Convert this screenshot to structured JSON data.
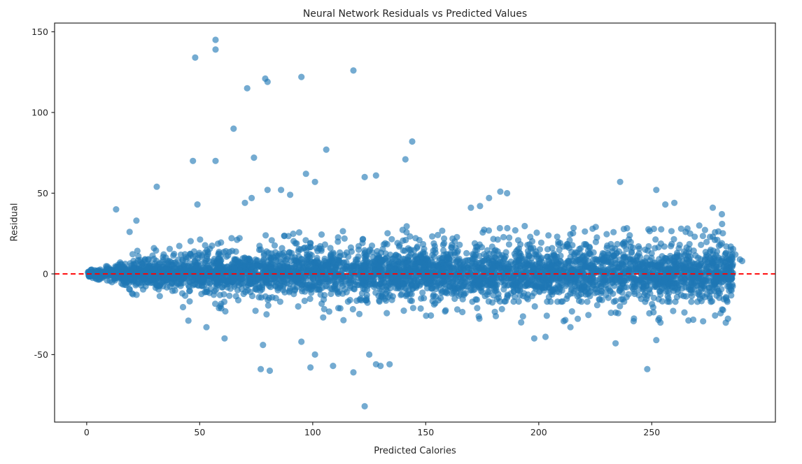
{
  "chart_data": {
    "type": "scatter",
    "title": "Neural Network Residuals vs Predicted Values",
    "xlabel": "Predicted Calories",
    "ylabel": "Residual",
    "xlim": [
      -14.2,
      304.7
    ],
    "ylim": [
      -91.8,
      155.4
    ],
    "x_ticks": [
      0,
      50,
      100,
      150,
      200,
      250
    ],
    "y_ticks": [
      -50,
      0,
      50,
      100,
      150
    ],
    "grid": false,
    "legend": null,
    "background": "#ffffff",
    "frame_color": "#262626",
    "marker": {
      "color": "#1f77b4",
      "alpha": 0.62,
      "radius": 4.6
    },
    "zero_line": {
      "y": 0,
      "color": "#ff0000",
      "style": "dashed",
      "width": 1.8,
      "dash": "7 4.5"
    },
    "series": [
      {
        "name": "residuals",
        "summary": "Funnel-shaped dense band of residuals: very tight near predicted=0, widening to roughly +/-16 by predicted=100 and staying about +/-18 through predicted=285, centered on the zero line, with sparse outliers up to +145 and down to -82",
        "band": {
          "seed": 42,
          "n_core": 4200,
          "n_fringe": 270,
          "x_min": 0.5,
          "x_max": 286,
          "width_base": 1.5,
          "width_amp": 13,
          "width_tau": 45,
          "sigma_div": 1.9,
          "clip_sigma": 2.35,
          "bias": 0.6,
          "fringe_x_min": 12,
          "fringe_x_span": 272,
          "fringe_up_ratio": 0.58
        },
        "outliers": [
          [
            57,
            145
          ],
          [
            57,
            139
          ],
          [
            48,
            134
          ],
          [
            118,
            126
          ],
          [
            95,
            122
          ],
          [
            79,
            121
          ],
          [
            80,
            119
          ],
          [
            71,
            115
          ],
          [
            65,
            90
          ],
          [
            144,
            82
          ],
          [
            106,
            77
          ],
          [
            141,
            71
          ],
          [
            74,
            72
          ],
          [
            57,
            70
          ],
          [
            47,
            70
          ],
          [
            97,
            62
          ],
          [
            101,
            57
          ],
          [
            123,
            60
          ],
          [
            128,
            61
          ],
          [
            86,
            52
          ],
          [
            80,
            52
          ],
          [
            90,
            49
          ],
          [
            73,
            47
          ],
          [
            70,
            44
          ],
          [
            31,
            54
          ],
          [
            13,
            40
          ],
          [
            22,
            33
          ],
          [
            19,
            26
          ],
          [
            49,
            43
          ],
          [
            236,
            57
          ],
          [
            252,
            52
          ],
          [
            256,
            43
          ],
          [
            260,
            44
          ],
          [
            277,
            41
          ],
          [
            281,
            37
          ],
          [
            183,
            51
          ],
          [
            178,
            47
          ],
          [
            186,
            50
          ],
          [
            271,
            30
          ],
          [
            174,
            42
          ],
          [
            170,
            41
          ],
          [
            123,
            -82
          ],
          [
            118,
            -61
          ],
          [
            81,
            -60
          ],
          [
            77,
            -59
          ],
          [
            99,
            -58
          ],
          [
            109,
            -57
          ],
          [
            128,
            -56
          ],
          [
            130,
            -57
          ],
          [
            134,
            -56
          ],
          [
            125,
            -50
          ],
          [
            101,
            -50
          ],
          [
            95,
            -42
          ],
          [
            78,
            -44
          ],
          [
            61,
            -40
          ],
          [
            53,
            -33
          ],
          [
            45,
            -29
          ],
          [
            198,
            -40
          ],
          [
            203,
            -39
          ],
          [
            214,
            -33
          ],
          [
            234,
            -43
          ],
          [
            252,
            -41
          ],
          [
            248,
            -59
          ],
          [
            263,
            28
          ],
          [
            265,
            26
          ],
          [
            267,
            25
          ],
          [
            269,
            23
          ],
          [
            277,
            23
          ],
          [
            279,
            21
          ],
          [
            281,
            19
          ],
          [
            283,
            17
          ],
          [
            285,
            15
          ],
          [
            287,
            12
          ],
          [
            289,
            9
          ],
          [
            290,
            8
          ]
        ]
      }
    ]
  }
}
